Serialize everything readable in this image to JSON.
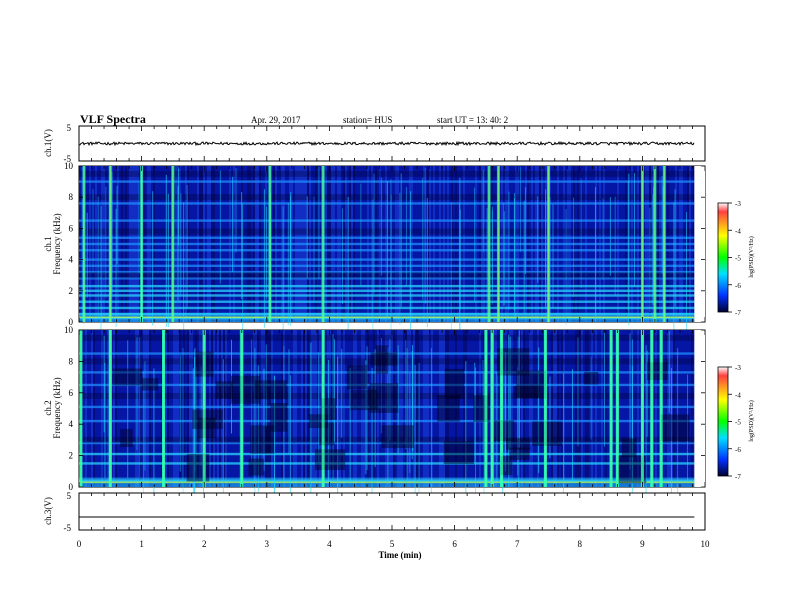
{
  "header": {
    "title": "VLF Spectra",
    "date": "Apr. 29, 2017",
    "station": "station= HUS",
    "start": "start  UT  =   13: 40: 2"
  },
  "panels": {
    "ch1_label": "ch.1(V)",
    "ch1_ticks": [
      "5",
      "-5"
    ],
    "ch2_label": "ch.1",
    "ch3_label": "ch.2",
    "freq_label": "Frequency (kHz)",
    "freq_ticks": [
      "10",
      "8",
      "6",
      "4",
      "2",
      "0"
    ],
    "ch4_label": "ch.3(V)",
    "ch4_ticks": [
      "5",
      "-5"
    ]
  },
  "colorbar": {
    "label": "log(PSD)(V²/Hz)",
    "ticks": [
      "-3",
      "-4",
      "-5",
      "-6",
      "-7"
    ],
    "colors": [
      "#ff0000",
      "#ffff00",
      "#00ff00",
      "#00ffff",
      "#0040ff",
      "#000040"
    ]
  },
  "x_axis": {
    "label": "Time (min)",
    "ticks": [
      "0",
      "1",
      "2",
      "3",
      "4",
      "5",
      "6",
      "7",
      "8",
      "9",
      "10"
    ]
  },
  "chart_data": [
    {
      "type": "line",
      "title": "VLF Spectra",
      "ylabel": "ch.1(V)",
      "xlabel": "Time (min)",
      "xlim": [
        0,
        10
      ],
      "ylim": [
        -5,
        5
      ],
      "series": [
        {
          "x_range": [
            0,
            9.83
          ],
          "y_mean": 0,
          "y_amplitude": 0.4
        }
      ]
    },
    {
      "type": "heatmap",
      "ylabel": "ch.1 Frequency (kHz)",
      "xlim": [
        0,
        10
      ],
      "ylim": [
        0,
        10
      ],
      "data_extent_min": 9.83,
      "colorbar_range": [
        -7,
        -3
      ],
      "background_log_psd": -6.3,
      "horizontal_bands_khz": [
        0.25,
        0.5,
        0.9,
        1.3,
        1.7,
        2.0,
        2.3,
        2.8,
        3.2,
        3.6,
        4.0,
        4.6,
        5.0,
        5.4,
        6.5,
        7.6,
        9.0
      ],
      "vertical_bursts_min": [
        0.08,
        0.5,
        1.0,
        1.5,
        3.05,
        3.9,
        6.55,
        6.7,
        7.5,
        9.0,
        9.2,
        9.35
      ]
    },
    {
      "type": "heatmap",
      "ylabel": "ch.2 Frequency (kHz)",
      "xlim": [
        0,
        10
      ],
      "ylim": [
        0,
        10
      ],
      "data_extent_min": 9.83,
      "colorbar_range": [
        -7,
        -3
      ],
      "background_log_psd": -6.6,
      "horizontal_bands_khz": [
        0.4,
        1.5,
        2.1,
        2.8,
        4.2,
        5.1,
        6.5,
        7.3,
        8.5
      ],
      "vertical_bursts_min": [
        0.03,
        0.5,
        1.35,
        2.0,
        2.6,
        3.9,
        6.5,
        6.6,
        6.75,
        7.45,
        8.5,
        8.6,
        9.0,
        9.15,
        9.3
      ]
    },
    {
      "type": "line",
      "ylabel": "ch.3(V)",
      "xlabel": "Time (min)",
      "xlim": [
        0,
        10
      ],
      "ylim": [
        -5,
        5
      ],
      "series": [
        {
          "x_range": [
            0,
            9.83
          ],
          "y_mean": -1.5,
          "y_amplitude": 0
        }
      ]
    }
  ]
}
